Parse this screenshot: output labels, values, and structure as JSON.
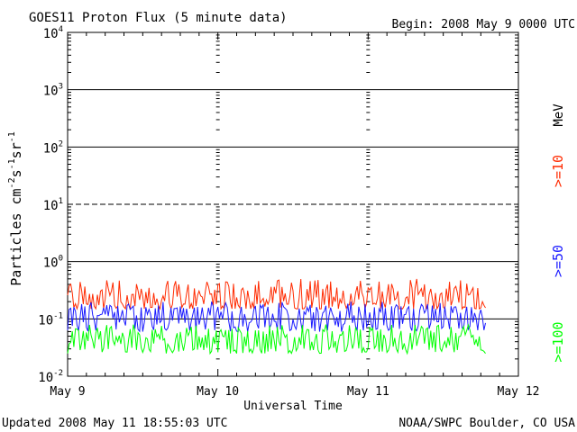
{
  "header": {
    "title": "GOES11 Proton Flux (5 minute data)",
    "begin": "Begin: 2008 May 9 0000 UTC"
  },
  "footer": {
    "updated": "Updated 2008 May 11 18:55:03 UTC",
    "credit": "NOAA/SWPC Boulder, CO USA"
  },
  "chart_data": {
    "type": "line",
    "title": "GOES11 Proton Flux (5 minute data)",
    "xlabel": "Universal Time",
    "ylabel": "Particles cm-2 s-1 sr-1",
    "yscale": "log",
    "ylim": [
      0.01,
      10000
    ],
    "xlim": [
      "2008-05-09 00:00",
      "2008-05-12 00:00"
    ],
    "x_ticks": [
      "May 9",
      "May 10",
      "May 11",
      "May 12"
    ],
    "y_ticks": [
      {
        "value": 0.01,
        "base": "10",
        "exp": "-2"
      },
      {
        "value": 0.1,
        "base": "10",
        "exp": "-1"
      },
      {
        "value": 1,
        "base": "10",
        "exp": "0"
      },
      {
        "value": 10,
        "base": "10",
        "exp": "1"
      },
      {
        "value": 100,
        "base": "10",
        "exp": "2"
      },
      {
        "value": 1000,
        "base": "10",
        "exp": "3"
      },
      {
        "value": 10000,
        "base": "10",
        "exp": "4"
      }
    ],
    "ylabel_parts": {
      "pre": "Particles cm",
      "e1": "-2",
      "m1": "s",
      "e2": "-1",
      "m2": "sr",
      "e3": "-1"
    },
    "unit": "MeV",
    "data_end": "2008-05-11 18:55",
    "series": [
      {
        "name": ">=10",
        "color": "#ff2a00",
        "range": [
          0.15,
          0.5
        ],
        "typical": 0.22
      },
      {
        "name": ">=50",
        "color": "#1a1aff",
        "range": [
          0.06,
          0.2
        ],
        "typical": 0.1
      },
      {
        "name": ">=100",
        "color": "#00ff00",
        "range": [
          0.025,
          0.08
        ],
        "typical": 0.04
      }
    ],
    "threshold_dashed": 10,
    "grid": "major horizontal lines at 1e-1, 1, 1e2, 1e3; dashed at 1e1",
    "legend": "right side, vertical"
  }
}
